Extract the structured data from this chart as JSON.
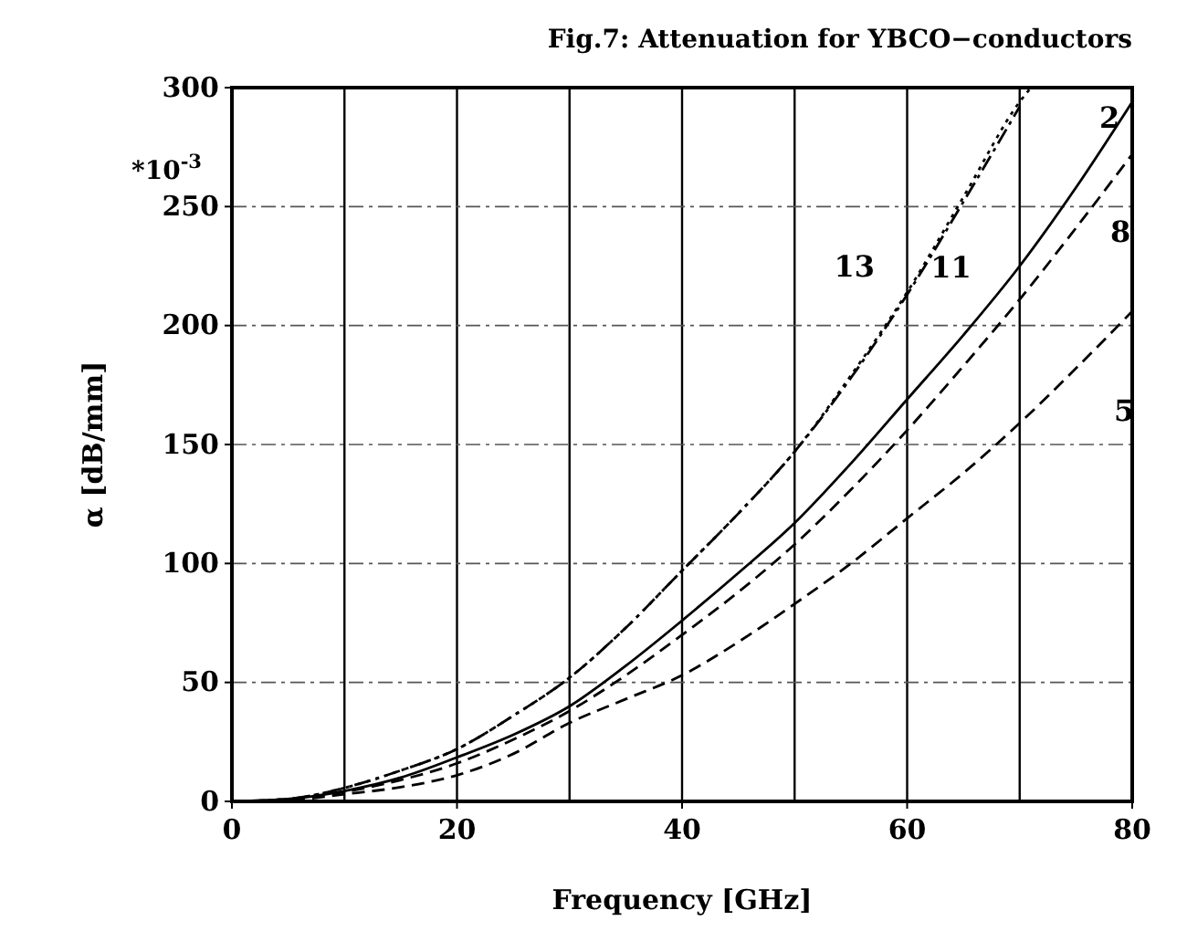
{
  "chart_data": {
    "type": "line",
    "title": "Fig.7: Attenuation for YBCO−conductors",
    "xlabel": "Frequency [GHz]",
    "ylabel": "α  [dB/mm]",
    "annotations": [
      "*10$^{-3}$"
    ],
    "xlim": [
      0,
      80
    ],
    "ylim": [
      0,
      300
    ],
    "xticks": [
      0,
      20,
      40,
      60,
      80
    ],
    "yticks": [
      0,
      50,
      100,
      150,
      200,
      250,
      300
    ],
    "grid": true,
    "series": [
      {
        "name": "2",
        "color": "#000000",
        "line_style": "solid",
        "x": [
          0,
          5,
          10,
          15,
          20,
          25,
          30,
          35,
          40,
          45,
          50,
          55,
          60,
          65,
          70,
          75,
          80
        ],
        "values": [
          0,
          1,
          4.4,
          10,
          18.5,
          28,
          40,
          57,
          76,
          96,
          117,
          142,
          169,
          196,
          225,
          258,
          294
        ]
      },
      {
        "name": "8",
        "color": "#000000",
        "line_style": "dashed",
        "x": [
          0,
          5,
          10,
          15,
          20,
          25,
          30,
          35,
          40,
          45,
          50,
          55,
          60,
          65,
          70,
          75,
          80
        ],
        "values": [
          0,
          1,
          4,
          9,
          16,
          26,
          38,
          53,
          70,
          88,
          108,
          131,
          156,
          183,
          211,
          241,
          272
        ]
      },
      {
        "name": "5",
        "color": "#000000",
        "line_style": "dashed",
        "x": [
          0,
          5,
          10,
          15,
          20,
          25,
          30,
          35,
          40,
          45,
          50,
          55,
          60,
          65,
          70,
          75,
          80
        ],
        "values": [
          0,
          0.5,
          3,
          6,
          11,
          20,
          33,
          43,
          53,
          67,
          83,
          100,
          119,
          138,
          159,
          182,
          206
        ]
      },
      {
        "name": "13",
        "color": "#000000",
        "line_style": "dashdot",
        "x": [
          0,
          5,
          10,
          15,
          20,
          25,
          30,
          35,
          40,
          45,
          50,
          55,
          60,
          65,
          70
        ],
        "values": [
          0,
          1,
          5.7,
          13,
          22,
          36,
          52,
          73,
          97,
          121,
          147,
          178,
          213,
          252,
          292
        ]
      },
      {
        "name": "11",
        "color": "#000000",
        "line_style": "dotted",
        "x": [
          0,
          5,
          10,
          15,
          20,
          25,
          30,
          35,
          40,
          45,
          50,
          55,
          60,
          65,
          70,
          71
        ],
        "values": [
          0,
          1,
          5.7,
          13,
          22,
          36,
          52,
          73,
          97,
          121,
          147,
          179,
          214,
          254,
          294,
          300
        ]
      }
    ]
  }
}
